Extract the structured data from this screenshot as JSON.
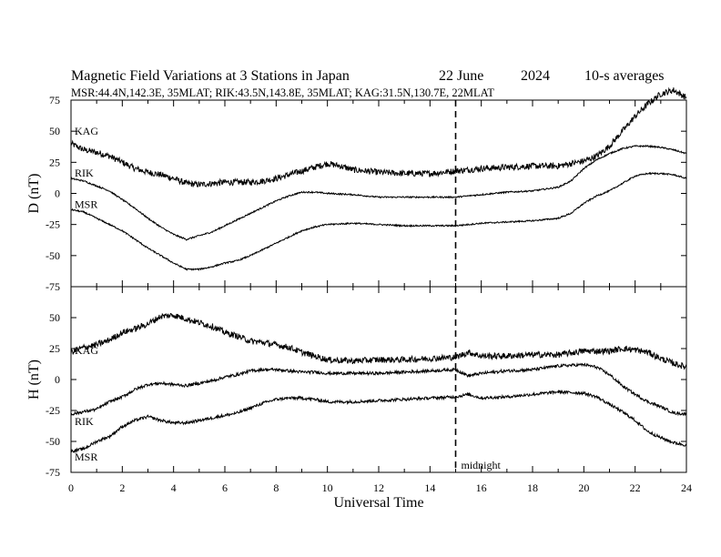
{
  "title": "Magnetic Field Variations at 3 Stations in Japan",
  "date": "22 June",
  "year": "2024",
  "averaging": "10-s averages",
  "stations_line": "MSR:44.4N,142.3E, 35MLAT;  RIK:43.5N,143.8E, 35MLAT;  KAG:31.5N,130.7E, 22MLAT",
  "xlabel": "Universal Time",
  "midnight_label": "midnight",
  "midnight_ut": 15,
  "x_ticks": [
    "0",
    "2",
    "4",
    "6",
    "8",
    "10",
    "12",
    "14",
    "16",
    "18",
    "20",
    "22",
    "24"
  ],
  "chart_data": [
    {
      "type": "line",
      "ylabel": "D (nT)",
      "xlim": [
        0,
        24
      ],
      "ylim": [
        -75,
        75
      ],
      "y_ticks": [
        "75",
        "50",
        "25",
        "0",
        "-25",
        "-50",
        "-75"
      ],
      "series": [
        {
          "name": "KAG",
          "noise": 2.5,
          "x": [
            0,
            0.5,
            1,
            1.5,
            2,
            2.5,
            3,
            3.5,
            4,
            4.5,
            5,
            5.5,
            6,
            6.5,
            7,
            7.5,
            8,
            8.5,
            9,
            9.5,
            10,
            10.5,
            11,
            12,
            13,
            14,
            15,
            16,
            17,
            18,
            19,
            19.5,
            20,
            20.5,
            21,
            21.5,
            22,
            22.5,
            23,
            23.5,
            24
          ],
          "y": [
            40,
            35,
            33,
            30,
            25,
            20,
            17,
            15,
            12,
            8,
            7,
            8,
            9,
            9,
            9,
            10,
            12,
            15,
            18,
            21,
            24,
            22,
            19,
            17,
            16,
            16,
            18,
            20,
            21,
            22,
            22,
            24,
            26,
            30,
            38,
            50,
            62,
            72,
            80,
            83,
            77
          ]
        },
        {
          "name": "RIK",
          "noise": 0.6,
          "x": [
            0,
            0.5,
            1,
            1.5,
            2,
            2.5,
            3,
            3.5,
            4,
            4.5,
            5,
            5.5,
            6,
            6.5,
            7,
            7.5,
            8,
            8.5,
            9,
            9.5,
            10,
            11,
            12,
            13,
            14,
            15,
            16,
            17,
            18,
            19,
            19.5,
            20,
            20.5,
            21,
            21.5,
            22,
            22.5,
            23,
            23.5,
            24
          ],
          "y": [
            12,
            10,
            6,
            2,
            -5,
            -12,
            -20,
            -27,
            -33,
            -37,
            -34,
            -31,
            -26,
            -21,
            -16,
            -11,
            -6,
            -2,
            1,
            1,
            0,
            -1,
            -3,
            -3,
            -3,
            -3,
            -1,
            1,
            2,
            5,
            10,
            20,
            27,
            32,
            36,
            38,
            38,
            37,
            35,
            32
          ]
        },
        {
          "name": "MSR",
          "noise": 0.6,
          "x": [
            0,
            0.5,
            1,
            1.5,
            2,
            2.5,
            3,
            3.5,
            4,
            4.5,
            5,
            5.5,
            6,
            6.5,
            7,
            7.5,
            8,
            8.5,
            9,
            9.5,
            10,
            11,
            12,
            13,
            14,
            15,
            16,
            17,
            18,
            19,
            19.5,
            20,
            20.5,
            21,
            21.5,
            22,
            22.5,
            23,
            23.5,
            24
          ],
          "y": [
            -13,
            -15,
            -20,
            -25,
            -30,
            -37,
            -44,
            -50,
            -56,
            -61,
            -61,
            -59,
            -56,
            -54,
            -50,
            -45,
            -40,
            -35,
            -30,
            -27,
            -25,
            -24,
            -25,
            -26,
            -26,
            -26,
            -24,
            -23,
            -22,
            -20,
            -16,
            -8,
            -2,
            2,
            8,
            14,
            16,
            16,
            15,
            12
          ]
        }
      ]
    },
    {
      "type": "line",
      "ylabel": "H (nT)",
      "xlim": [
        0,
        24
      ],
      "ylim": [
        -75,
        75
      ],
      "y_ticks": [
        "75",
        "50",
        "25",
        "0",
        "-25",
        "-50",
        "-75"
      ],
      "series": [
        {
          "name": "KAG",
          "noise": 2.5,
          "x": [
            0,
            0.5,
            1,
            1.5,
            2,
            2.5,
            3,
            3.5,
            4,
            4.5,
            5,
            5.5,
            6,
            6.5,
            7,
            7.5,
            8,
            8.5,
            9,
            9.5,
            10,
            11,
            12,
            13,
            14,
            15,
            15.5,
            16,
            17,
            18,
            19,
            20,
            21,
            21.5,
            22,
            22.5,
            23,
            23.5,
            24
          ],
          "y": [
            22,
            26,
            28,
            32,
            38,
            41,
            45,
            51,
            52,
            49,
            46,
            43,
            38,
            35,
            31,
            30,
            28,
            26,
            22,
            19,
            16,
            15,
            16,
            16,
            17,
            18,
            22,
            19,
            19,
            20,
            20,
            23,
            23,
            25,
            24,
            22,
            17,
            13,
            10
          ]
        },
        {
          "name": "RIK",
          "noise": 1.2,
          "x": [
            0,
            0.5,
            1,
            1.5,
            2,
            2.5,
            3,
            3.5,
            4,
            4.5,
            5,
            5.5,
            6,
            6.5,
            7,
            7.5,
            8,
            8.5,
            9,
            9.5,
            10,
            11,
            12,
            13,
            14,
            15,
            15.5,
            16,
            17,
            18,
            19,
            20,
            20.5,
            21,
            21.5,
            22,
            22.5,
            23,
            23.5,
            24
          ],
          "y": [
            -28,
            -26,
            -24,
            -18,
            -14,
            -8,
            -4,
            -3,
            -4,
            -5,
            -3,
            -1,
            2,
            4,
            7,
            8,
            8,
            7,
            6,
            6,
            5,
            5,
            5,
            6,
            7,
            8,
            3,
            5,
            7,
            8,
            11,
            12,
            10,
            4,
            -5,
            -12,
            -18,
            -22,
            -27,
            -28
          ]
        },
        {
          "name": "MSR",
          "noise": 1.2,
          "x": [
            0,
            0.5,
            1,
            1.5,
            2,
            2.5,
            3,
            3.5,
            4,
            4.5,
            5,
            5.5,
            6,
            6.5,
            7,
            7.5,
            8,
            8.5,
            9,
            9.5,
            10,
            11,
            12,
            13,
            14,
            15,
            15.5,
            16,
            17,
            18,
            19,
            20,
            20.5,
            21,
            21.5,
            22,
            22.5,
            23,
            23.5,
            24
          ],
          "y": [
            -58,
            -56,
            -50,
            -46,
            -38,
            -33,
            -30,
            -33,
            -35,
            -35,
            -33,
            -31,
            -29,
            -27,
            -23,
            -19,
            -16,
            -15,
            -15,
            -16,
            -18,
            -18,
            -17,
            -16,
            -15,
            -14,
            -12,
            -15,
            -14,
            -12,
            -10,
            -11,
            -14,
            -20,
            -26,
            -33,
            -42,
            -47,
            -51,
            -53
          ]
        }
      ]
    }
  ]
}
